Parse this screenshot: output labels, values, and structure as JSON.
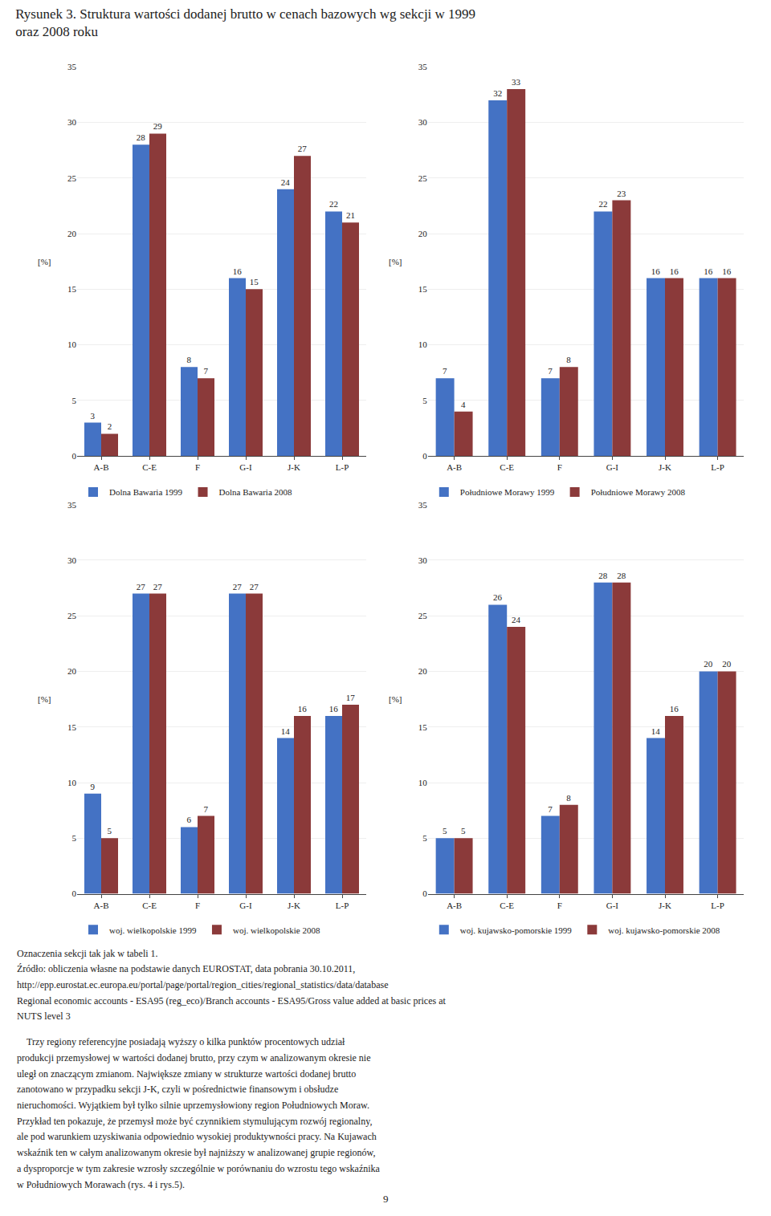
{
  "title": "Rysunek 3. Struktura wartości dodanej brutto w cenach bazowych wg sekcji w 1999\noraz 2008 roku",
  "annotations": [
    "Oznaczenia sekcji tak jak w tabeli 1.",
    "Źródło: obliczenia własne na podstawie danych EUROSTAT, data pobrania 30.10.2011,",
    "http://epp.eurostat.ec.europa.eu/portal/page/portal/region_cities/regional_statistics/data/database",
    "Regional economic accounts - ESA95 (reg_eco)/Branch accounts - ESA95/Gross value added at basic prices at",
    "NUTS level 3",
    "    Trzy regiony referencyjne posiadają wyższy o kilka punktów procentowych udział",
    "produkcji przemysłowej w wartości dodanej brutto, przy czym w analizowanym okresie nie",
    "uległ on znaczącym zmianom. Największe zmiany w strukturze wartości dodanej brutto",
    "zanotowano w przypadku sekcji J-K, czyli w pośrednictwie finansowym i obsłudze",
    "nieruchomości. Wyjątkiem był tylko silnie uprzemysłowiony region Południowych Moraw.",
    "Przykład ten pokazuje, że przemysł może być czynnikiem stymulującym rozwój regionalny,",
    "ale pod warunkiem uzyskiwania odpowiednio wysokiej produktywności pracy. Na Kujawach",
    "wskaźnik ten w całym analizowanym okresie był najniższy w analizowanej grupie regionów,",
    "a dysproporcje w tym zakresie wzrosły szczególnie w porównaniu do wzrostu tego wskaźnika",
    "w Południowych Morawach (rys. 4 i rys.5).",
    "9"
  ],
  "chart_data": [
    {
      "type": "bar",
      "categories": [
        "A-B",
        "C-E",
        "F",
        "G-I",
        "J-K",
        "L-P"
      ],
      "ylabel": "[%]",
      "series": [
        {
          "name": "Dolna Bawaria 1999",
          "color": "#4472C4",
          "values": [
            3,
            28,
            8,
            16,
            24,
            22
          ]
        },
        {
          "name": "Dolna Bawaria 2008",
          "color": "#8B3A3A",
          "values": [
            2,
            29,
            7,
            15,
            27,
            21
          ]
        }
      ],
      "ylim": [
        0,
        35
      ],
      "yticks": [
        0,
        5,
        10,
        15,
        20,
        25,
        30,
        35
      ],
      "grid": true,
      "data_labels": true,
      "legend": "bottom"
    },
    {
      "type": "bar",
      "categories": [
        "A-B",
        "C-E",
        "F",
        "G-I",
        "J-K",
        "L-P"
      ],
      "ylabel": "[%]",
      "series": [
        {
          "name": "Południowe Morawy 1999",
          "color": "#4472C4",
          "values": [
            7,
            32,
            7,
            22,
            16,
            16
          ]
        },
        {
          "name": "Południowe Morawy 2008",
          "color": "#8B3A3A",
          "values": [
            4,
            33,
            8,
            23,
            16,
            16
          ]
        }
      ],
      "ylim": [
        0,
        35
      ],
      "yticks": [
        0,
        5,
        10,
        15,
        20,
        25,
        30,
        35
      ],
      "grid": true,
      "data_labels": true,
      "legend": "bottom"
    },
    {
      "type": "bar",
      "categories": [
        "A-B",
        "C-E",
        "F",
        "G-I",
        "J-K",
        "L-P"
      ],
      "ylabel": "[%]",
      "series": [
        {
          "name": "woj. wielkopolskie 1999",
          "color": "#4472C4",
          "values": [
            9,
            27,
            6,
            27,
            14,
            16
          ]
        },
        {
          "name": "woj. wielkopolskie 2008",
          "color": "#8B3A3A",
          "values": [
            5,
            27,
            7,
            27,
            16,
            17
          ]
        }
      ],
      "ylim": [
        0,
        35
      ],
      "yticks": [
        0,
        5,
        10,
        15,
        20,
        25,
        30,
        35
      ],
      "grid": true,
      "data_labels": true,
      "legend": "bottom"
    },
    {
      "type": "bar",
      "categories": [
        "A-B",
        "C-E",
        "F",
        "G-I",
        "J-K",
        "L-P"
      ],
      "ylabel": "[%]",
      "series": [
        {
          "name": "woj. kujawsko-pomorskie 1999",
          "color": "#4472C4",
          "values": [
            5,
            26,
            7,
            28,
            14,
            20
          ]
        },
        {
          "name": "woj. kujawsko-pomorskie 2008",
          "color": "#8B3A3A",
          "values": [
            5,
            24,
            8,
            28,
            16,
            20
          ]
        }
      ],
      "ylim": [
        0,
        35
      ],
      "yticks": [
        0,
        5,
        10,
        15,
        20,
        25,
        30,
        35
      ],
      "grid": true,
      "data_labels": true,
      "legend": "bottom"
    }
  ]
}
